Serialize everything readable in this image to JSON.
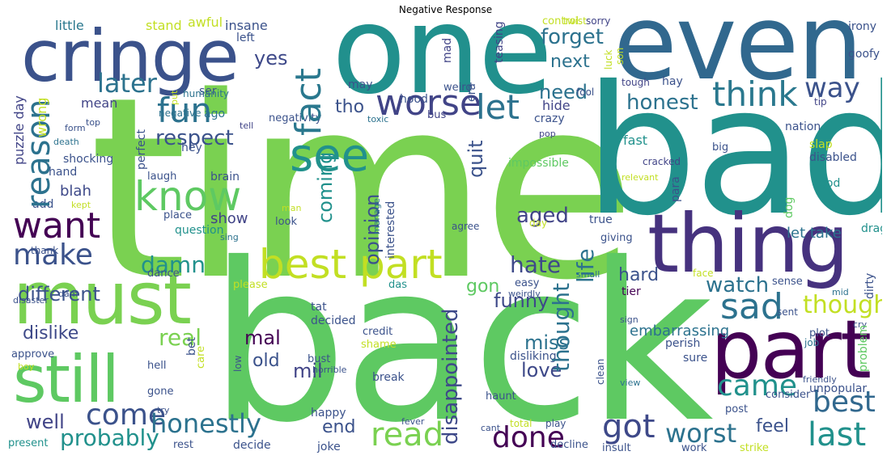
{
  "title": "Negative Response",
  "palette": {
    "purple": "#440154",
    "indigo": "#3b528b",
    "blue": "#31688e",
    "teal": "#21918c",
    "green": "#35b779",
    "lime": "#7ad151",
    "yellow": "#c8d63a"
  },
  "words": [
    {
      "text": "time",
      "color": "#7ad151"
    },
    {
      "text": "bad",
      "color": "#21918c"
    },
    {
      "text": "back",
      "color": "#5ec962"
    },
    {
      "text": "one",
      "color": "#21908d"
    },
    {
      "text": "even",
      "color": "#31688e"
    },
    {
      "text": "cringe",
      "color": "#3b528b"
    },
    {
      "text": "must",
      "color": "#7ad151"
    },
    {
      "text": "thing",
      "color": "#46327e"
    },
    {
      "text": "part",
      "color": "#440154"
    },
    {
      "text": "still",
      "color": "#5ec962"
    },
    {
      "text": "best part",
      "color": "#c2df23"
    },
    {
      "text": "know",
      "color": "#5ec962"
    },
    {
      "text": "sad",
      "color": "#2c728e"
    },
    {
      "text": "fact",
      "color": "#2a788e"
    },
    {
      "text": "want",
      "color": "#440154"
    },
    {
      "text": "reason",
      "color": "#2c728e"
    },
    {
      "text": "see",
      "color": "#21918c"
    },
    {
      "text": "worse",
      "color": "#414487"
    },
    {
      "text": "fun",
      "color": "#2c728e"
    },
    {
      "text": "think",
      "color": "#2a788e"
    },
    {
      "text": "let",
      "color": "#2c728e"
    },
    {
      "text": "later",
      "color": "#2c728e"
    },
    {
      "text": "make",
      "color": "#3b528b"
    },
    {
      "text": "respect",
      "color": "#3b528b"
    },
    {
      "text": "way",
      "color": "#3b528b"
    },
    {
      "text": "honest",
      "color": "#2c728e"
    },
    {
      "text": "forget",
      "color": "#2c728e"
    },
    {
      "text": "next",
      "color": "#2c728e"
    },
    {
      "text": "yes",
      "color": "#3e4989"
    },
    {
      "text": "need",
      "color": "#2c728e"
    },
    {
      "text": "tho",
      "color": "#3b528b"
    },
    {
      "text": "came",
      "color": "#21918c"
    },
    {
      "text": "best",
      "color": "#31688e"
    },
    {
      "text": "though",
      "color": "#c2df23"
    },
    {
      "text": "read",
      "color": "#7ad151"
    },
    {
      "text": "last",
      "color": "#21918c"
    },
    {
      "text": "got",
      "color": "#3e4989"
    },
    {
      "text": "worst",
      "color": "#2c728e"
    },
    {
      "text": "come",
      "color": "#3b528b"
    },
    {
      "text": "honestly",
      "color": "#2c728e"
    },
    {
      "text": "probably",
      "color": "#21918c"
    },
    {
      "text": "done",
      "color": "#440154"
    },
    {
      "text": "damn",
      "color": "#21918c"
    },
    {
      "text": "hate",
      "color": "#3e4989"
    },
    {
      "text": "watch",
      "color": "#2c728e"
    },
    {
      "text": "real",
      "color": "#7ad151"
    },
    {
      "text": "different",
      "color": "#3b528b"
    },
    {
      "text": "dislike",
      "color": "#3e4989"
    },
    {
      "text": "well",
      "color": "#414487"
    },
    {
      "text": "mil",
      "color": "#414487"
    },
    {
      "text": "love",
      "color": "#3e4989"
    },
    {
      "text": "miss",
      "color": "#2c728e"
    },
    {
      "text": "aged",
      "color": "#414487"
    },
    {
      "text": "coming",
      "color": "#21918c"
    },
    {
      "text": "quit",
      "color": "#3b528b"
    },
    {
      "text": "opinion",
      "color": "#3b528b"
    },
    {
      "text": "life",
      "color": "#2c728e"
    },
    {
      "text": "thought",
      "color": "#2c728e"
    },
    {
      "text": "disappointed",
      "color": "#3e4989"
    },
    {
      "text": "funny",
      "color": "#5ec962"
    },
    {
      "text": "gon",
      "color": "#5ec962"
    },
    {
      "text": "hard",
      "color": "#3b528b"
    },
    {
      "text": "feel",
      "color": "#3b528b"
    },
    {
      "text": "end",
      "color": "#3b528b"
    },
    {
      "text": "mal",
      "color": "#440154"
    },
    {
      "text": "old",
      "color": "#3b528b"
    },
    {
      "text": "embarrassing",
      "color": "#2c728e"
    },
    {
      "text": "let take",
      "color": "#2c728e"
    },
    {
      "text": "hide",
      "color": "#414487"
    },
    {
      "text": "show",
      "color": "#414487"
    },
    {
      "text": "blah",
      "color": "#3e4989"
    },
    {
      "text": "puzzle day",
      "color": "#414487"
    },
    {
      "text": "wrong",
      "color": "#c2df23"
    },
    {
      "text": "mean",
      "color": "#414487"
    },
    {
      "text": "little",
      "color": "#2a788e"
    },
    {
      "text": "stand",
      "color": "#c2df23"
    },
    {
      "text": "awful",
      "color": "#c2df23"
    },
    {
      "text": "insane",
      "color": "#3b528b"
    },
    {
      "text": "left",
      "color": "#3b528b"
    },
    {
      "text": "mad",
      "color": "#414487"
    },
    {
      "text": "control",
      "color": "#3b528b"
    },
    {
      "text": "era",
      "color": "#414487"
    },
    {
      "text": "teasing",
      "color": "#c2df23"
    },
    {
      "text": "twist",
      "color": "#414487"
    },
    {
      "text": "sorry",
      "color": "#3b528b"
    },
    {
      "text": "irony",
      "color": "#3b528b"
    },
    {
      "text": "goofy",
      "color": "#c2df23"
    },
    {
      "text": "son",
      "color": "#c2df23"
    },
    {
      "text": "luck",
      "color": "#414487"
    },
    {
      "text": "tough",
      "color": "#3b528b"
    },
    {
      "text": "hay",
      "color": "#414487"
    },
    {
      "text": "tip",
      "color": "#c2df23"
    },
    {
      "text": "put",
      "color": "#3b528b"
    },
    {
      "text": "may",
      "color": "#3b528b"
    },
    {
      "text": "weird",
      "color": "#3b528b"
    },
    {
      "text": "fool",
      "color": "#3b528b"
    },
    {
      "text": "hood",
      "color": "#3b528b"
    },
    {
      "text": "crazy",
      "color": "#3b528b"
    },
    {
      "text": "ser",
      "color": "#2c728e"
    },
    {
      "text": "humanity",
      "color": "#2c728e"
    },
    {
      "text": "ago",
      "color": "#2c728e"
    },
    {
      "text": "negative",
      "color": "#3b528b"
    },
    {
      "text": "negativity",
      "color": "#2c728e"
    },
    {
      "text": "toxic",
      "color": "#414487"
    },
    {
      "text": "bus",
      "color": "#3b528b"
    },
    {
      "text": "form",
      "color": "#3b528b"
    },
    {
      "text": "top",
      "color": "#2c728e"
    },
    {
      "text": "death",
      "color": "#414487"
    },
    {
      "text": "tell",
      "color": "#414487"
    },
    {
      "text": "pop",
      "color": "#3b528b"
    },
    {
      "text": "nation",
      "color": "#3b528b"
    },
    {
      "text": "hey",
      "color": "#3b528b"
    },
    {
      "text": "perfect",
      "color": "#3b528b"
    },
    {
      "text": "shocking",
      "color": "#3b528b"
    },
    {
      "text": "hand",
      "color": "#3b528b"
    },
    {
      "text": "laugh",
      "color": "#3b528b"
    },
    {
      "text": "brain",
      "color": "#3b528b"
    },
    {
      "text": "big",
      "color": "#21918c"
    },
    {
      "text": "fast",
      "color": "#c2df23"
    },
    {
      "text": "slap",
      "color": "#3b528b"
    },
    {
      "text": "disabled",
      "color": "#3b528b"
    },
    {
      "text": "para",
      "color": "#414487"
    },
    {
      "text": "cracked",
      "color": "#c2df23"
    },
    {
      "text": "relevant",
      "color": "#5ec962"
    },
    {
      "text": "dog",
      "color": "#21918c"
    },
    {
      "text": "god",
      "color": "#21918c"
    },
    {
      "text": "dragged",
      "color": "#5ec962"
    },
    {
      "text": "impossible",
      "color": "#3b528b"
    },
    {
      "text": "interested",
      "color": "#2c728e"
    },
    {
      "text": "manage",
      "color": "#3b528b"
    },
    {
      "text": "place",
      "color": "#3b528b"
    },
    {
      "text": "add",
      "color": "#c2df23"
    },
    {
      "text": "kept",
      "color": "#c2df23"
    },
    {
      "text": "man",
      "color": "#3b528b"
    },
    {
      "text": "look",
      "color": "#21918c"
    },
    {
      "text": "question",
      "color": "#3b528b"
    },
    {
      "text": "true",
      "color": "#c2df23"
    },
    {
      "text": "day",
      "color": "#2c728e"
    },
    {
      "text": "sing",
      "color": "#3b528b"
    },
    {
      "text": "agree",
      "color": "#3b528b"
    },
    {
      "text": "giving",
      "color": "#c2df23"
    },
    {
      "text": "face",
      "color": "#3b528b"
    },
    {
      "text": "dirty",
      "color": "#3b528b"
    },
    {
      "text": "thank",
      "color": "#3b528b"
    },
    {
      "text": "dance",
      "color": "#c2df23"
    },
    {
      "text": "please",
      "color": "#21918c"
    },
    {
      "text": "das",
      "color": "#3b528b"
    },
    {
      "text": "easy",
      "color": "#2c728e"
    },
    {
      "text": "small",
      "color": "#3b528b"
    },
    {
      "text": "sense",
      "color": "#2c728e"
    },
    {
      "text": "mid",
      "color": "#3b528b"
    },
    {
      "text": "dam",
      "color": "#3b528b"
    },
    {
      "text": "disaster",
      "color": "#3b528b"
    },
    {
      "text": "bet",
      "color": "#3b528b"
    },
    {
      "text": "tat",
      "color": "#3b528b"
    },
    {
      "text": "decided",
      "color": "#3b528b"
    },
    {
      "text": "weirdly",
      "color": "#440154"
    },
    {
      "text": "tier",
      "color": "#3b528b"
    },
    {
      "text": "sent",
      "color": "#3b528b"
    },
    {
      "text": "plot",
      "color": "#2c728e"
    },
    {
      "text": "job",
      "color": "#3b528b"
    },
    {
      "text": "cry",
      "color": "#3b528b"
    },
    {
      "text": "sign",
      "color": "#3b528b"
    },
    {
      "text": "credit",
      "color": "#c2df23"
    },
    {
      "text": "shame",
      "color": "#3b528b"
    },
    {
      "text": "perish",
      "color": "#3b528b"
    },
    {
      "text": "sure",
      "color": "#5ec962"
    },
    {
      "text": "problem",
      "color": "#3b528b"
    },
    {
      "text": "approve",
      "color": "#c2df23"
    },
    {
      "text": "boy",
      "color": "#c2df23"
    },
    {
      "text": "care",
      "color": "#3b528b"
    },
    {
      "text": "hell",
      "color": "#3b528b"
    },
    {
      "text": "low",
      "color": "#3b528b"
    },
    {
      "text": "bust",
      "color": "#3b528b"
    },
    {
      "text": "horrible",
      "color": "#3b528b"
    },
    {
      "text": "disliking",
      "color": "#3b528b"
    },
    {
      "text": "clean",
      "color": "#2c728e"
    },
    {
      "text": "view",
      "color": "#3b528b"
    },
    {
      "text": "gone",
      "color": "#3b528b"
    },
    {
      "text": "break",
      "color": "#3b528b"
    },
    {
      "text": "friendly",
      "color": "#3b528b"
    },
    {
      "text": "consider",
      "color": "#3b528b"
    },
    {
      "text": "unpopular",
      "color": "#3b528b"
    },
    {
      "text": "try",
      "color": "#3b528b"
    },
    {
      "text": "happy",
      "color": "#3b528b"
    },
    {
      "text": "haunt",
      "color": "#3b528b"
    },
    {
      "text": "post",
      "color": "#3b528b"
    },
    {
      "text": "fever",
      "color": "#3b528b"
    },
    {
      "text": "cant",
      "color": "#c2df23"
    },
    {
      "text": "total",
      "color": "#3b528b"
    },
    {
      "text": "play",
      "color": "#21918c"
    },
    {
      "text": "present",
      "color": "#3b528b"
    },
    {
      "text": "rest",
      "color": "#3b528b"
    },
    {
      "text": "decide",
      "color": "#3b528b"
    },
    {
      "text": "joke",
      "color": "#3b528b"
    },
    {
      "text": "decline",
      "color": "#3b528b"
    },
    {
      "text": "insult",
      "color": "#3b528b"
    },
    {
      "text": "work",
      "color": "#c2df23"
    },
    {
      "text": "strike",
      "color": "#3b528b"
    }
  ]
}
